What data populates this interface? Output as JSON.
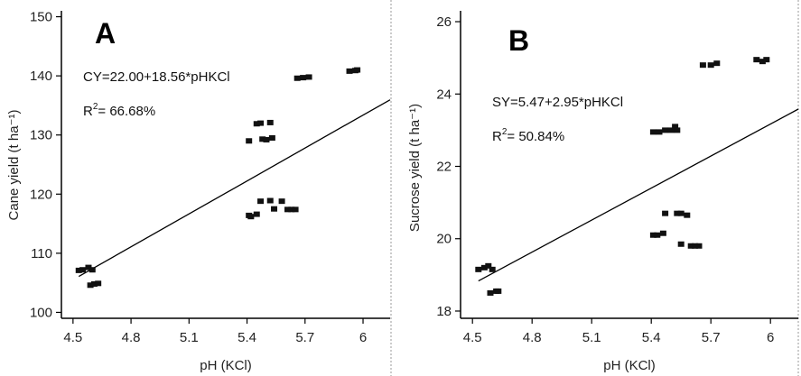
{
  "chart_data": [
    {
      "type": "scatter",
      "panel_label": "A",
      "ylabel": "Cane yield (t ha⁻¹)",
      "xlabel": "pH (KCl)",
      "xlim": [
        4.44,
        6.14
      ],
      "ylim": [
        99,
        151
      ],
      "xticks": [
        "4.5",
        "4.8",
        "5.1",
        "5.4",
        "5.7",
        "6"
      ],
      "yticks": [
        "100",
        "110",
        "120",
        "130",
        "140",
        "150"
      ],
      "equation": "CY=22.00+18.56*pHKCl",
      "r2_prefix": "R",
      "r2_sup": "2",
      "r2_value": "= 66.68%",
      "trendline": {
        "intercept": 22.0,
        "slope": 18.56
      },
      "points": [
        {
          "x": 4.53,
          "y": 107.1
        },
        {
          "x": 4.55,
          "y": 107.2
        },
        {
          "x": 4.58,
          "y": 107.6
        },
        {
          "x": 4.6,
          "y": 107.2
        },
        {
          "x": 4.59,
          "y": 104.6
        },
        {
          "x": 4.61,
          "y": 104.8
        },
        {
          "x": 4.63,
          "y": 104.9
        },
        {
          "x": 5.41,
          "y": 129.0
        },
        {
          "x": 5.45,
          "y": 131.9
        },
        {
          "x": 5.47,
          "y": 132.0
        },
        {
          "x": 5.48,
          "y": 129.3
        },
        {
          "x": 5.5,
          "y": 129.2
        },
        {
          "x": 5.52,
          "y": 132.1
        },
        {
          "x": 5.53,
          "y": 129.5
        },
        {
          "x": 5.41,
          "y": 116.4
        },
        {
          "x": 5.42,
          "y": 116.2
        },
        {
          "x": 5.45,
          "y": 116.6
        },
        {
          "x": 5.47,
          "y": 118.8
        },
        {
          "x": 5.52,
          "y": 118.9
        },
        {
          "x": 5.54,
          "y": 117.5
        },
        {
          "x": 5.58,
          "y": 118.8
        },
        {
          "x": 5.61,
          "y": 117.4
        },
        {
          "x": 5.63,
          "y": 117.4
        },
        {
          "x": 5.65,
          "y": 117.4
        },
        {
          "x": 5.66,
          "y": 139.6
        },
        {
          "x": 5.69,
          "y": 139.7
        },
        {
          "x": 5.72,
          "y": 139.8
        },
        {
          "x": 5.93,
          "y": 140.8
        },
        {
          "x": 5.96,
          "y": 140.9
        },
        {
          "x": 5.97,
          "y": 141.0
        }
      ]
    },
    {
      "type": "scatter",
      "panel_label": "B",
      "ylabel": "Sucrose yield (t ha⁻¹)",
      "xlabel": "pH (KCl)",
      "xlim": [
        4.44,
        6.14
      ],
      "ylim": [
        17.8,
        26.3
      ],
      "xticks": [
        "4.5",
        "4.8",
        "5.1",
        "5.4",
        "5.7",
        "6"
      ],
      "yticks": [
        "18",
        "20",
        "22",
        "24",
        "26"
      ],
      "equation": "SY=5.47+2.95*pHKCl",
      "r2_prefix": "R",
      "r2_sup": "2",
      "r2_value": "= 50.84%",
      "trendline": {
        "intercept": 5.47,
        "slope": 2.95
      },
      "points": [
        {
          "x": 4.53,
          "y": 19.15
        },
        {
          "x": 4.56,
          "y": 19.2
        },
        {
          "x": 4.58,
          "y": 19.25
        },
        {
          "x": 4.6,
          "y": 19.15
        },
        {
          "x": 4.59,
          "y": 18.5
        },
        {
          "x": 4.62,
          "y": 18.55
        },
        {
          "x": 4.63,
          "y": 18.55
        },
        {
          "x": 5.41,
          "y": 22.95
        },
        {
          "x": 5.44,
          "y": 22.95
        },
        {
          "x": 5.47,
          "y": 23.0
        },
        {
          "x": 5.5,
          "y": 23.0
        },
        {
          "x": 5.52,
          "y": 23.1
        },
        {
          "x": 5.53,
          "y": 23.0
        },
        {
          "x": 5.41,
          "y": 20.1
        },
        {
          "x": 5.43,
          "y": 20.1
        },
        {
          "x": 5.46,
          "y": 20.15
        },
        {
          "x": 5.47,
          "y": 20.7
        },
        {
          "x": 5.53,
          "y": 20.7
        },
        {
          "x": 5.55,
          "y": 20.7
        },
        {
          "x": 5.58,
          "y": 20.65
        },
        {
          "x": 5.55,
          "y": 19.85
        },
        {
          "x": 5.6,
          "y": 19.8
        },
        {
          "x": 5.62,
          "y": 19.8
        },
        {
          "x": 5.64,
          "y": 19.8
        },
        {
          "x": 5.66,
          "y": 24.8
        },
        {
          "x": 5.7,
          "y": 24.8
        },
        {
          "x": 5.73,
          "y": 24.85
        },
        {
          "x": 5.93,
          "y": 24.95
        },
        {
          "x": 5.96,
          "y": 24.9
        },
        {
          "x": 5.98,
          "y": 24.95
        }
      ]
    }
  ]
}
